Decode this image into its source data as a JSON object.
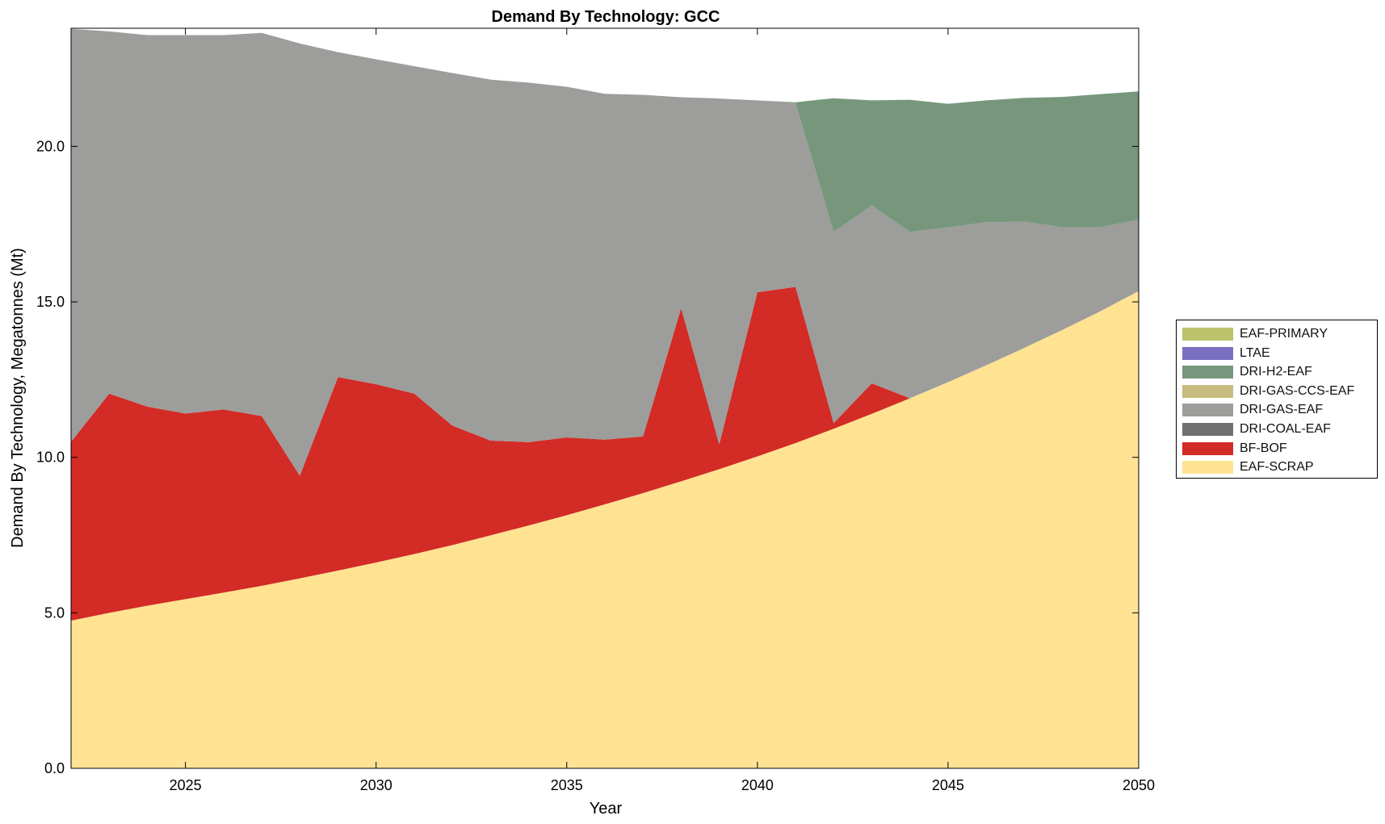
{
  "chart_data": {
    "type": "area",
    "title": "Demand By Technology: GCC",
    "xlabel": "Year",
    "ylabel": "Demand By Technology, Megatonnes (Mt)",
    "xlim": [
      2022,
      2050
    ],
    "ylim": [
      0,
      23.8
    ],
    "xticks": [
      2025,
      2030,
      2035,
      2040,
      2045,
      2050
    ],
    "yticks": [
      "0.0",
      "5.0",
      "10.0",
      "15.0",
      "20.0"
    ],
    "legend_position": "right",
    "x": [
      2022,
      2023,
      2024,
      2025,
      2026,
      2027,
      2028,
      2029,
      2030,
      2031,
      2032,
      2033,
      2034,
      2035,
      2036,
      2037,
      2038,
      2039,
      2040,
      2041,
      2042,
      2043,
      2044,
      2045,
      2046,
      2047,
      2048,
      2049,
      2050
    ],
    "series": [
      {
        "name": "EAF-SCRAP",
        "color": "#FFE393",
        "values": [
          4.75,
          5.0,
          5.23,
          5.44,
          5.65,
          5.87,
          6.11,
          6.36,
          6.62,
          6.89,
          7.18,
          7.49,
          7.81,
          8.14,
          8.49,
          8.85,
          9.23,
          9.62,
          10.03,
          10.46,
          10.92,
          11.4,
          11.9,
          12.42,
          12.96,
          13.52,
          14.1,
          14.7,
          15.35
        ]
      },
      {
        "name": "BF-BOF",
        "color": "#D32B26",
        "values": [
          5.75,
          7.05,
          6.4,
          5.97,
          5.89,
          5.46,
          3.3,
          6.22,
          5.73,
          5.16,
          3.84,
          3.05,
          2.68,
          2.5,
          2.08,
          1.82,
          5.57,
          0.8,
          5.28,
          5.02,
          0.18,
          0.98,
          0.0,
          0.0,
          0.0,
          0.0,
          0.0,
          0.0,
          0.0
        ]
      },
      {
        "name": "DRI-COAL-EAF",
        "color": "#707070",
        "values": [
          0,
          0,
          0,
          0,
          0,
          0,
          0,
          0,
          0,
          0,
          0,
          0,
          0,
          0,
          0,
          0,
          0,
          0,
          0,
          0,
          0,
          0,
          0,
          0,
          0,
          0,
          0,
          0,
          0
        ]
      },
      {
        "name": "DRI-GAS-EAF",
        "color": "#9D9D9B",
        "values": [
          13.28,
          11.65,
          11.95,
          12.17,
          12.04,
          12.32,
          13.9,
          10.45,
          10.45,
          10.53,
          11.34,
          11.61,
          11.56,
          11.28,
          11.12,
          10.99,
          6.78,
          11.12,
          6.17,
          5.92,
          6.15,
          5.72,
          5.35,
          4.98,
          4.6,
          4.06,
          3.3,
          2.7,
          2.3
        ]
      },
      {
        "name": "DRI-GAS-CCS-EAF",
        "color": "#C7BC7F",
        "values": [
          0,
          0,
          0,
          0,
          0,
          0,
          0,
          0,
          0,
          0,
          0,
          0,
          0,
          0,
          0,
          0,
          0,
          0,
          0,
          0,
          0,
          0,
          0,
          0,
          0,
          0,
          0,
          0,
          0
        ]
      },
      {
        "name": "DRI-H2-EAF",
        "color": "#76977C",
        "values": [
          0,
          0,
          0,
          0,
          0,
          0,
          0,
          0,
          0,
          0,
          0,
          0,
          0,
          0,
          0,
          0,
          0,
          0,
          0,
          0.02,
          4.3,
          3.38,
          4.25,
          3.97,
          3.92,
          3.98,
          4.19,
          4.28,
          4.12
        ]
      },
      {
        "name": "LTAE",
        "color": "#7B6FC4",
        "values": [
          0,
          0,
          0,
          0,
          0,
          0,
          0,
          0,
          0,
          0,
          0,
          0,
          0,
          0,
          0,
          0,
          0,
          0,
          0,
          0,
          0,
          0,
          0,
          0,
          0,
          0,
          0,
          0,
          0
        ]
      },
      {
        "name": "EAF-PRIMARY",
        "color": "#BBC36A",
        "values": [
          0,
          0,
          0,
          0,
          0,
          0,
          0,
          0,
          0,
          0,
          0,
          0,
          0,
          0,
          0,
          0,
          0,
          0,
          0,
          0,
          0,
          0,
          0,
          0,
          0,
          0,
          0,
          0,
          0
        ]
      }
    ],
    "legend_order": [
      "EAF-PRIMARY",
      "LTAE",
      "DRI-H2-EAF",
      "DRI-GAS-CCS-EAF",
      "DRI-GAS-EAF",
      "DRI-COAL-EAF",
      "BF-BOF",
      "EAF-SCRAP"
    ]
  }
}
